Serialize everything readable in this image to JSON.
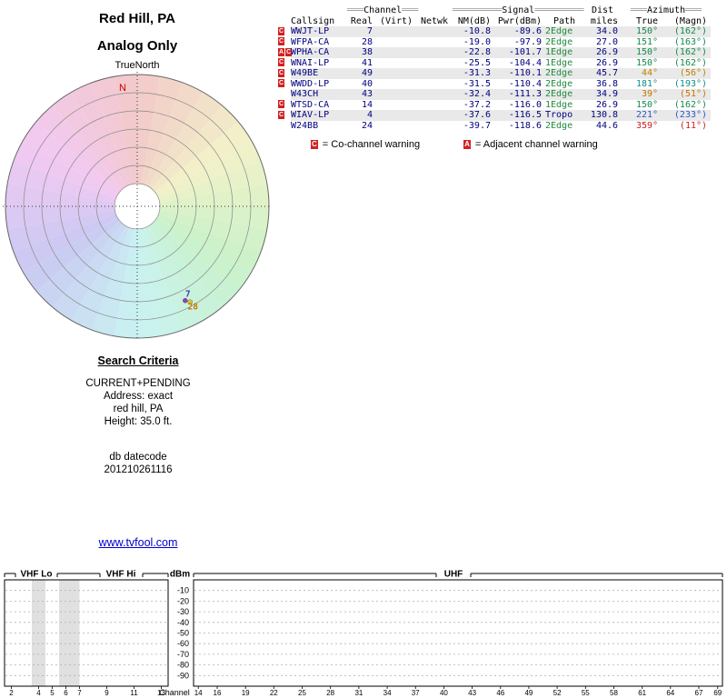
{
  "header": {
    "title_line1": "Red Hill, PA",
    "title_line2": "Analog Only"
  },
  "polar": {
    "orientation_label": "TrueNorth",
    "north_label": "N"
  },
  "search": {
    "title": "Search Criteria",
    "mode": "CURRENT+PENDING",
    "address": "Address: exact",
    "location": "red hill, PA",
    "height": "Height: 35.0 ft.",
    "datecode_label": "db datecode",
    "datecode_value": "201210261116"
  },
  "link": {
    "text": "www.tvfool.com"
  },
  "table": {
    "groups": {
      "channel": {
        "pre": "═══",
        "label": "Channel",
        "post": "═══"
      },
      "signal": {
        "pre": "═════════",
        "label": "Signal",
        "post": "═════════"
      },
      "dist": "Dist",
      "azimuth": {
        "pre": "═══",
        "label": "Azimuth",
        "post": "═══"
      }
    },
    "col": {
      "callsign": "Callsign",
      "real": "Real",
      "virt": "(Virt)",
      "netwk": "Netwk",
      "nm": "NM(dB)",
      "pwr": "Pwr(dBm)",
      "path": "Path",
      "miles": "miles",
      "true_az": "True",
      "magn_az": "(Magn)"
    },
    "rows": [
      {
        "flags": [
          "C"
        ],
        "callsign": "WWJT-LP",
        "real": "7",
        "virt": "",
        "netwk": "",
        "nm": "-10.8",
        "pwr": "-89.6",
        "path": "2Edge",
        "path_color": "#1e8c3c",
        "miles": "34.0",
        "true_az": "150°",
        "magn_az": "(162°)",
        "az_color": "#128a4a"
      },
      {
        "flags": [
          "C"
        ],
        "callsign": "WFPA-CA",
        "real": "28",
        "virt": "",
        "netwk": "",
        "nm": "-19.0",
        "pwr": "-97.9",
        "path": "2Edge",
        "path_color": "#1e8c3c",
        "miles": "27.0",
        "true_az": "151°",
        "magn_az": "(163°)",
        "az_color": "#128a4a"
      },
      {
        "flags": [
          "A",
          "C"
        ],
        "callsign": "WPHA-CA",
        "real": "38",
        "virt": "",
        "netwk": "",
        "nm": "-22.8",
        "pwr": "-101.7",
        "path": "1Edge",
        "path_color": "#1e8c3c",
        "miles": "26.9",
        "true_az": "150°",
        "magn_az": "(162°)",
        "az_color": "#128a4a"
      },
      {
        "flags": [
          "C"
        ],
        "callsign": "WNAI-LP",
        "real": "41",
        "virt": "",
        "netwk": "",
        "nm": "-25.5",
        "pwr": "-104.4",
        "path": "1Edge",
        "path_color": "#1e8c3c",
        "miles": "26.9",
        "true_az": "150°",
        "magn_az": "(162°)",
        "az_color": "#128a4a"
      },
      {
        "flags": [
          "C"
        ],
        "callsign": "W49BE",
        "real": "49",
        "virt": "",
        "netwk": "",
        "nm": "-31.3",
        "pwr": "-110.1",
        "path": "2Edge",
        "path_color": "#1e8c3c",
        "miles": "45.7",
        "true_az": "44°",
        "magn_az": "(56°)",
        "az_color": "#c08000"
      },
      {
        "flags": [
          "C"
        ],
        "callsign": "WWDD-LP",
        "real": "40",
        "virt": "",
        "netwk": "",
        "nm": "-31.5",
        "pwr": "-110.4",
        "path": "2Edge",
        "path_color": "#1e8c3c",
        "miles": "36.8",
        "true_az": "181°",
        "magn_az": "(193°)",
        "az_color": "#0e8f86"
      },
      {
        "flags": [],
        "callsign": "W43CH",
        "real": "43",
        "virt": "",
        "netwk": "",
        "nm": "-32.4",
        "pwr": "-111.3",
        "path": "2Edge",
        "path_color": "#1e8c3c",
        "miles": "34.9",
        "true_az": "39°",
        "magn_az": "(51°)",
        "az_color": "#bf7700"
      },
      {
        "flags": [
          "C"
        ],
        "callsign": "WTSD-CA",
        "real": "14",
        "virt": "",
        "netwk": "",
        "nm": "-37.2",
        "pwr": "-116.0",
        "path": "1Edge",
        "path_color": "#1e8c3c",
        "miles": "26.9",
        "true_az": "150°",
        "magn_az": "(162°)",
        "az_color": "#128a4a"
      },
      {
        "flags": [
          "C"
        ],
        "callsign": "WIAV-LP",
        "real": "4",
        "virt": "",
        "netwk": "",
        "nm": "-37.6",
        "pwr": "-116.5",
        "path": "Tropo",
        "path_color": "#000080",
        "miles": "130.8",
        "true_az": "221°",
        "magn_az": "(233°)",
        "az_color": "#2f56cc"
      },
      {
        "flags": [],
        "callsign": "W24BB",
        "real": "24",
        "virt": "",
        "netwk": "",
        "nm": "-39.7",
        "pwr": "-118.6",
        "path": "2Edge",
        "path_color": "#1e8c3c",
        "miles": "44.6",
        "true_az": "359°",
        "magn_az": "(11°)",
        "az_color": "#cc1f1f"
      }
    ],
    "legend": [
      {
        "flag": "C",
        "text": "= Co-channel warning"
      },
      {
        "flag": "A",
        "text": "= Adjacent channel warning"
      }
    ]
  },
  "chart_data": [
    {
      "type": "scatter",
      "subtype": "polar-coverage-plot",
      "title": "Red Hill, PA — Analog Only",
      "orientation_label": "TrueNorth",
      "north_label": "N",
      "rings": 7,
      "hue_mapping": "azimuth 0-360 degrees maps to pastel hue wheel, red at north, clockwise",
      "points": [
        {
          "label": "7",
          "callsign": "WWJT-LP",
          "azimuth_deg": 150,
          "radius_frac": 0.77,
          "color": "#4040c0",
          "dot_color": "#9040b0",
          "dot_dx": -3,
          "dot_dy": 7
        },
        {
          "label": "28",
          "callsign": "WFPA-CA",
          "azimuth_deg": 151,
          "radius_frac": 0.87,
          "color": "#c87800",
          "dot_color": "#d4c83a",
          "dot_dx": -3,
          "dot_dy": -5
        }
      ]
    },
    {
      "type": "bar",
      "subtype": "channel-spectrum",
      "ylabel": "dBm",
      "xlabel": "Channel",
      "ylim": [
        0,
        -100
      ],
      "grid": true,
      "yticks": [
        -10,
        -20,
        -30,
        -40,
        -50,
        -60,
        -70,
        -80,
        -90
      ],
      "sections": [
        {
          "label": "VHF Lo",
          "channels": [
            2,
            6
          ]
        },
        {
          "label": "VHF Hi",
          "channels": [
            7,
            13
          ]
        },
        {
          "label": "UHF",
          "channels": [
            14,
            69
          ]
        }
      ],
      "vhf_tick_labels": [
        2,
        4,
        5,
        6,
        7,
        9,
        11,
        13
      ],
      "uhf_tick_labels": [
        14,
        16,
        19,
        22,
        25,
        28,
        31,
        34,
        37,
        40,
        43,
        46,
        49,
        52,
        55,
        58,
        61,
        64,
        67,
        69
      ],
      "shaded_channel_bands": [
        [
          4,
          5
        ],
        [
          6,
          7.5
        ]
      ],
      "bars": []
    }
  ]
}
